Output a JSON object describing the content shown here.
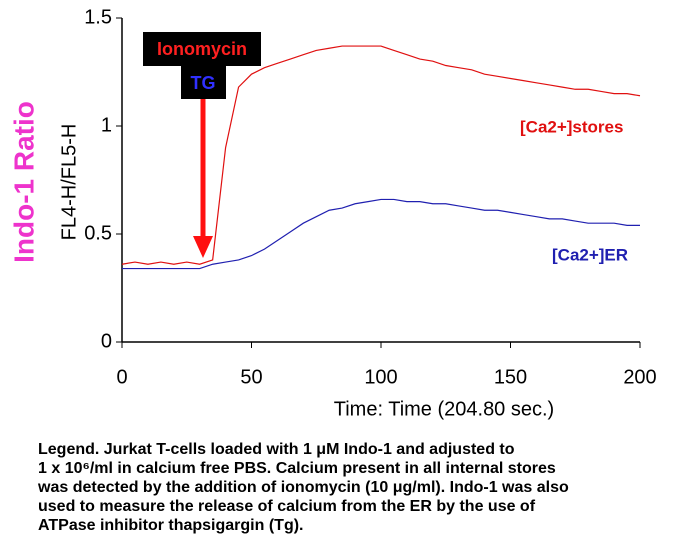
{
  "chart_data": {
    "type": "line",
    "ylabel": "FL4-H/FL5-H",
    "outer_label": "Indo-1 Ratio",
    "xlabel": "Time: Time (204.80 sec.)",
    "annotations": [
      "Ionomycin",
      "TG"
    ],
    "x": [
      0,
      5,
      10,
      15,
      20,
      25,
      30,
      35,
      40,
      45,
      50,
      55,
      60,
      65,
      70,
      75,
      80,
      85,
      90,
      95,
      100,
      105,
      110,
      115,
      120,
      125,
      130,
      135,
      140,
      145,
      150,
      155,
      160,
      165,
      170,
      175,
      180,
      185,
      190,
      195,
      200
    ],
    "series": [
      {
        "name": "[Ca2+]stores",
        "color": "#e01010",
        "values": [
          0.36,
          0.37,
          0.36,
          0.37,
          0.36,
          0.37,
          0.36,
          0.38,
          0.9,
          1.18,
          1.24,
          1.27,
          1.29,
          1.31,
          1.33,
          1.35,
          1.36,
          1.37,
          1.37,
          1.37,
          1.37,
          1.35,
          1.33,
          1.31,
          1.3,
          1.28,
          1.27,
          1.26,
          1.24,
          1.23,
          1.22,
          1.21,
          1.2,
          1.19,
          1.18,
          1.17,
          1.17,
          1.16,
          1.15,
          1.15,
          1.14
        ]
      },
      {
        "name": "[Ca2+]ER",
        "color": "#2020b0",
        "values": [
          0.34,
          0.34,
          0.34,
          0.34,
          0.34,
          0.34,
          0.34,
          0.36,
          0.37,
          0.38,
          0.4,
          0.43,
          0.47,
          0.51,
          0.55,
          0.58,
          0.61,
          0.62,
          0.64,
          0.65,
          0.66,
          0.66,
          0.65,
          0.65,
          0.64,
          0.64,
          0.63,
          0.62,
          0.61,
          0.61,
          0.6,
          0.59,
          0.58,
          0.57,
          0.57,
          0.56,
          0.55,
          0.55,
          0.55,
          0.54,
          0.54
        ]
      }
    ],
    "xlim": [
      0,
      200
    ],
    "xticks": [
      0,
      50,
      100,
      150,
      200
    ],
    "ylim": [
      0,
      1.5
    ],
    "yticks": [
      0,
      0.5,
      1,
      1.5
    ],
    "caption": [
      "Legend. Jurkat T-cells loaded with 1 μM  Indo-1 and adjusted to",
      "1 x 10⁶/ml in calcium free PBS. Calcium present in all internal stores",
      "was detected by the addition  of ionomycin (10 μg/ml). Indo-1 was also",
      "used to measure the release of calcium from the ER by the use of",
      "ATPase inhibitor thapsigargin (Tg)."
    ]
  }
}
